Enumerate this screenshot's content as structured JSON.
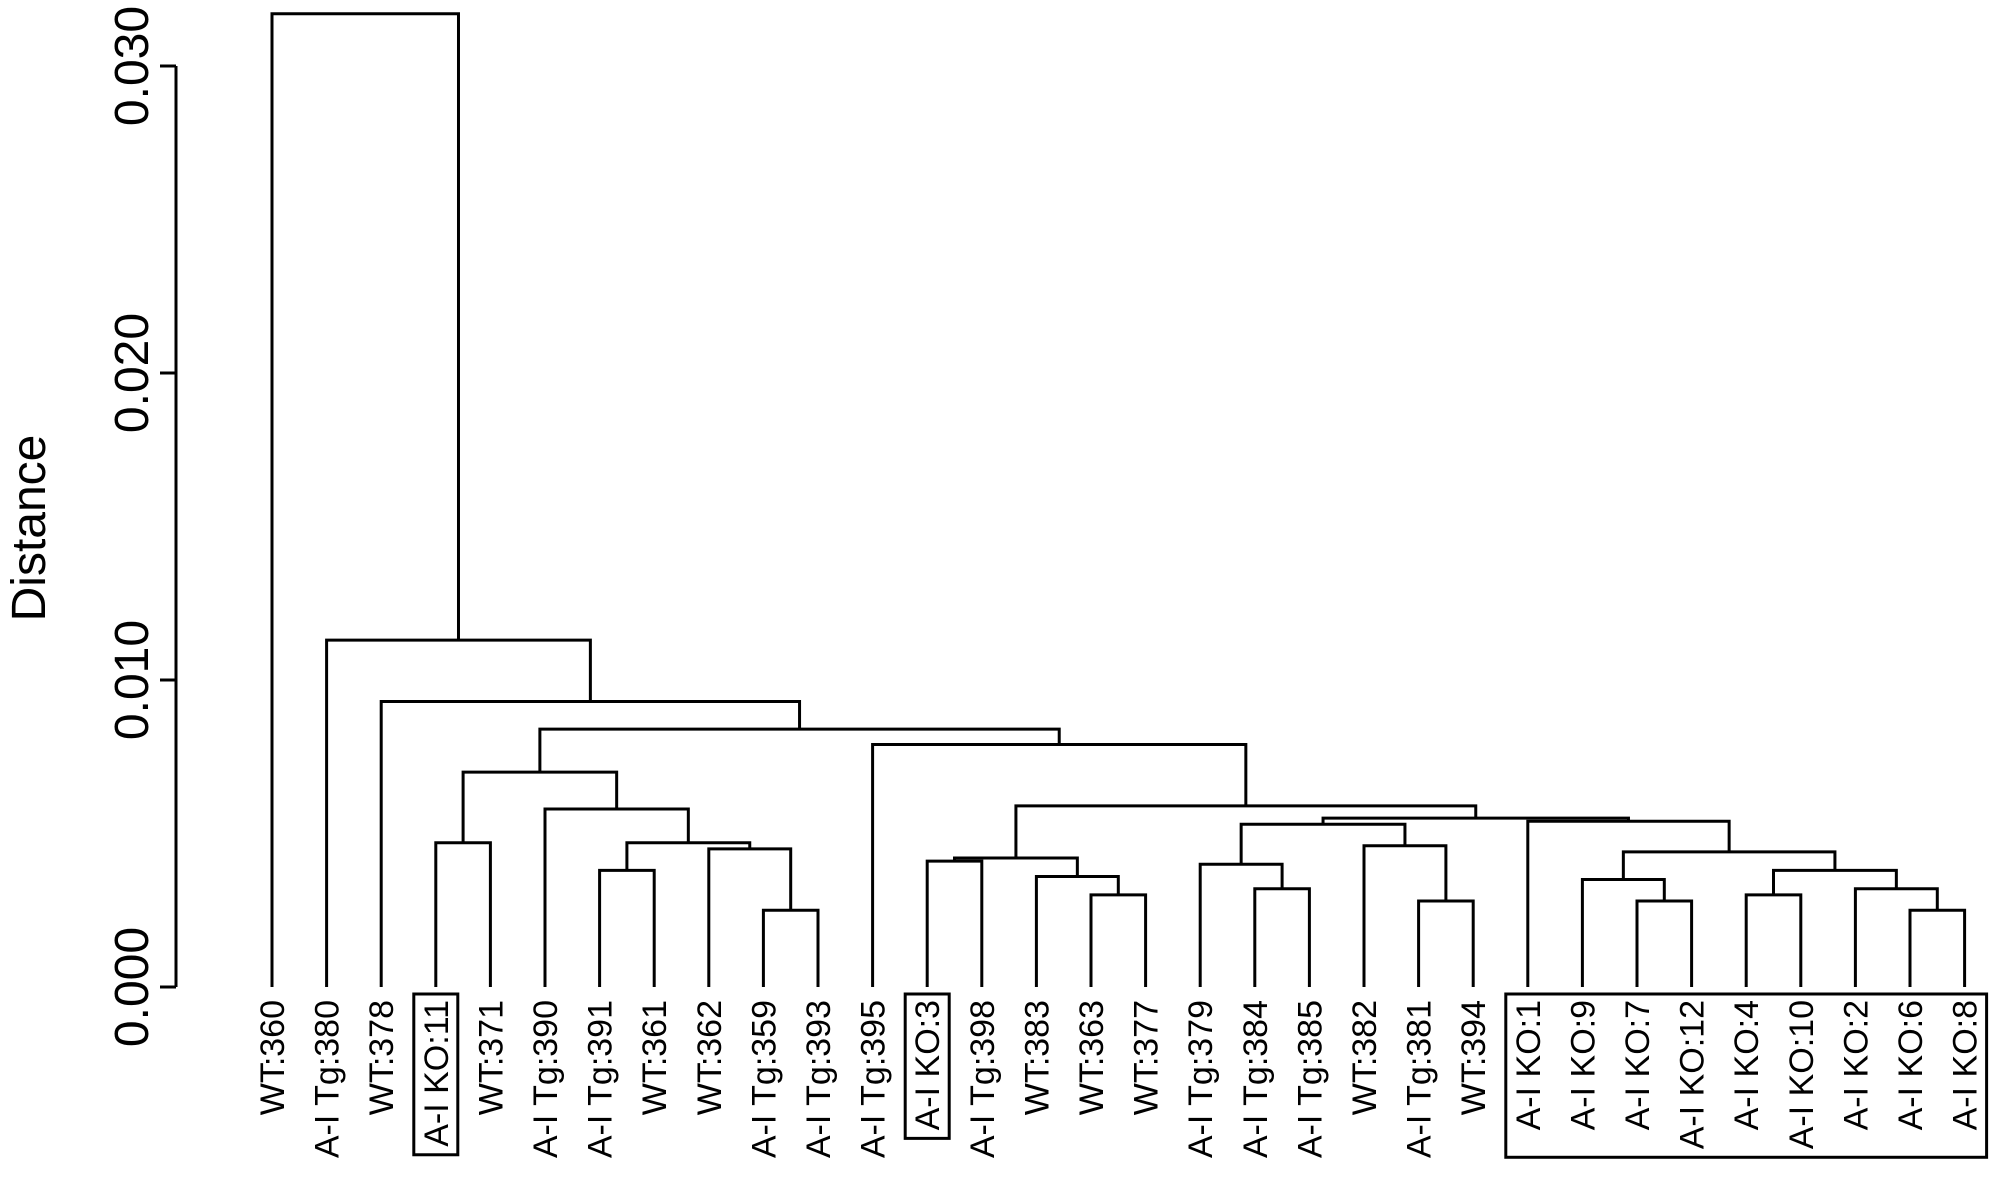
{
  "chart_data": {
    "type": "dendrogram",
    "ylabel": "Distance",
    "ylim": [
      0,
      0.0317
    ],
    "y_ticks": [
      "0.000",
      "0.010",
      "0.020",
      "0.030"
    ],
    "y_tick_values": [
      0,
      0.01,
      0.02,
      0.03
    ],
    "leaves": [
      "WT:360",
      "A-I Tg:380",
      "WT:378",
      "A-I KO:11",
      "WT:371",
      "A-I Tg:390",
      "A-I Tg:391",
      "WT:361",
      "WT:362",
      "A-I Tg:359",
      "A-I Tg:393",
      "A-I Tg:395",
      "A-I KO:3",
      "A-I Tg:398",
      "WT:383",
      "WT:363",
      "WT:377",
      "A-I Tg:379",
      "A-I Tg:384",
      "A-I Tg:385",
      "WT:382",
      "A-I Tg:381",
      "WT:394",
      "A-I KO:1",
      "A-I KO:9",
      "A-I KO:7",
      "A-I KO:12",
      "A-I KO:4",
      "A-I KO:10",
      "A-I KO:2",
      "A-I KO:6",
      "A-I KO:8"
    ],
    "highlighted_groups": [
      [
        3,
        3
      ],
      [
        12,
        12
      ],
      [
        23,
        31
      ]
    ],
    "merges": [
      {
        "a": 9,
        "b": 10,
        "h": 0.0025
      },
      {
        "a": 30,
        "b": 31,
        "h": 0.0025
      },
      {
        "a": 21,
        "b": 22,
        "h": 0.0028
      },
      {
        "a": 25,
        "b": 26,
        "h": 0.0028
      },
      {
        "a": 27,
        "b": 28,
        "h": 0.003
      },
      {
        "a": 15,
        "b": 16,
        "h": 0.003
      },
      {
        "a": 29,
        "b": "n2",
        "h": 0.0032
      },
      {
        "a": 18,
        "b": 19,
        "h": 0.0032
      },
      {
        "a": 24,
        "b": "n4",
        "h": 0.0035
      },
      {
        "a": 14,
        "b": "n6",
        "h": 0.0036
      },
      {
        "a": 6,
        "b": 7,
        "h": 0.0038
      },
      {
        "a": "n5",
        "b": "n7",
        "h": 0.0038
      },
      {
        "a": 17,
        "b": "n8",
        "h": 0.004
      },
      {
        "a": 12,
        "b": 13,
        "h": 0.0041
      },
      {
        "a": "n14",
        "b": "n10",
        "h": 0.0042
      },
      {
        "a": "n9",
        "b": "n12",
        "h": 0.0044
      },
      {
        "a": 8,
        "b": "n1",
        "h": 0.0045
      },
      {
        "a": 20,
        "b": "n3",
        "h": 0.0046
      },
      {
        "a": 3,
        "b": 4,
        "h": 0.0047
      },
      {
        "a": "n11",
        "b": "n17",
        "h": 0.0047
      },
      {
        "a": "n13",
        "b": "n18",
        "h": 0.0053
      },
      {
        "a": 23,
        "b": "n16",
        "h": 0.0054
      },
      {
        "a": "n21",
        "b": "n22",
        "h": 0.0055
      },
      {
        "a": 5,
        "b": "n20",
        "h": 0.0058
      },
      {
        "a": "n15",
        "b": "n23",
        "h": 0.0059
      },
      {
        "a": "n19",
        "b": "n24",
        "h": 0.007
      },
      {
        "a": 11,
        "b": "n25",
        "h": 0.0079
      },
      {
        "a": "n26",
        "b": "n27",
        "h": 0.0084
      },
      {
        "a": 2,
        "b": "n28",
        "h": 0.0093
      },
      {
        "a": 1,
        "b": "n29",
        "h": 0.0113
      },
      {
        "a": 0,
        "b": "n30",
        "h": 0.0317
      }
    ]
  }
}
